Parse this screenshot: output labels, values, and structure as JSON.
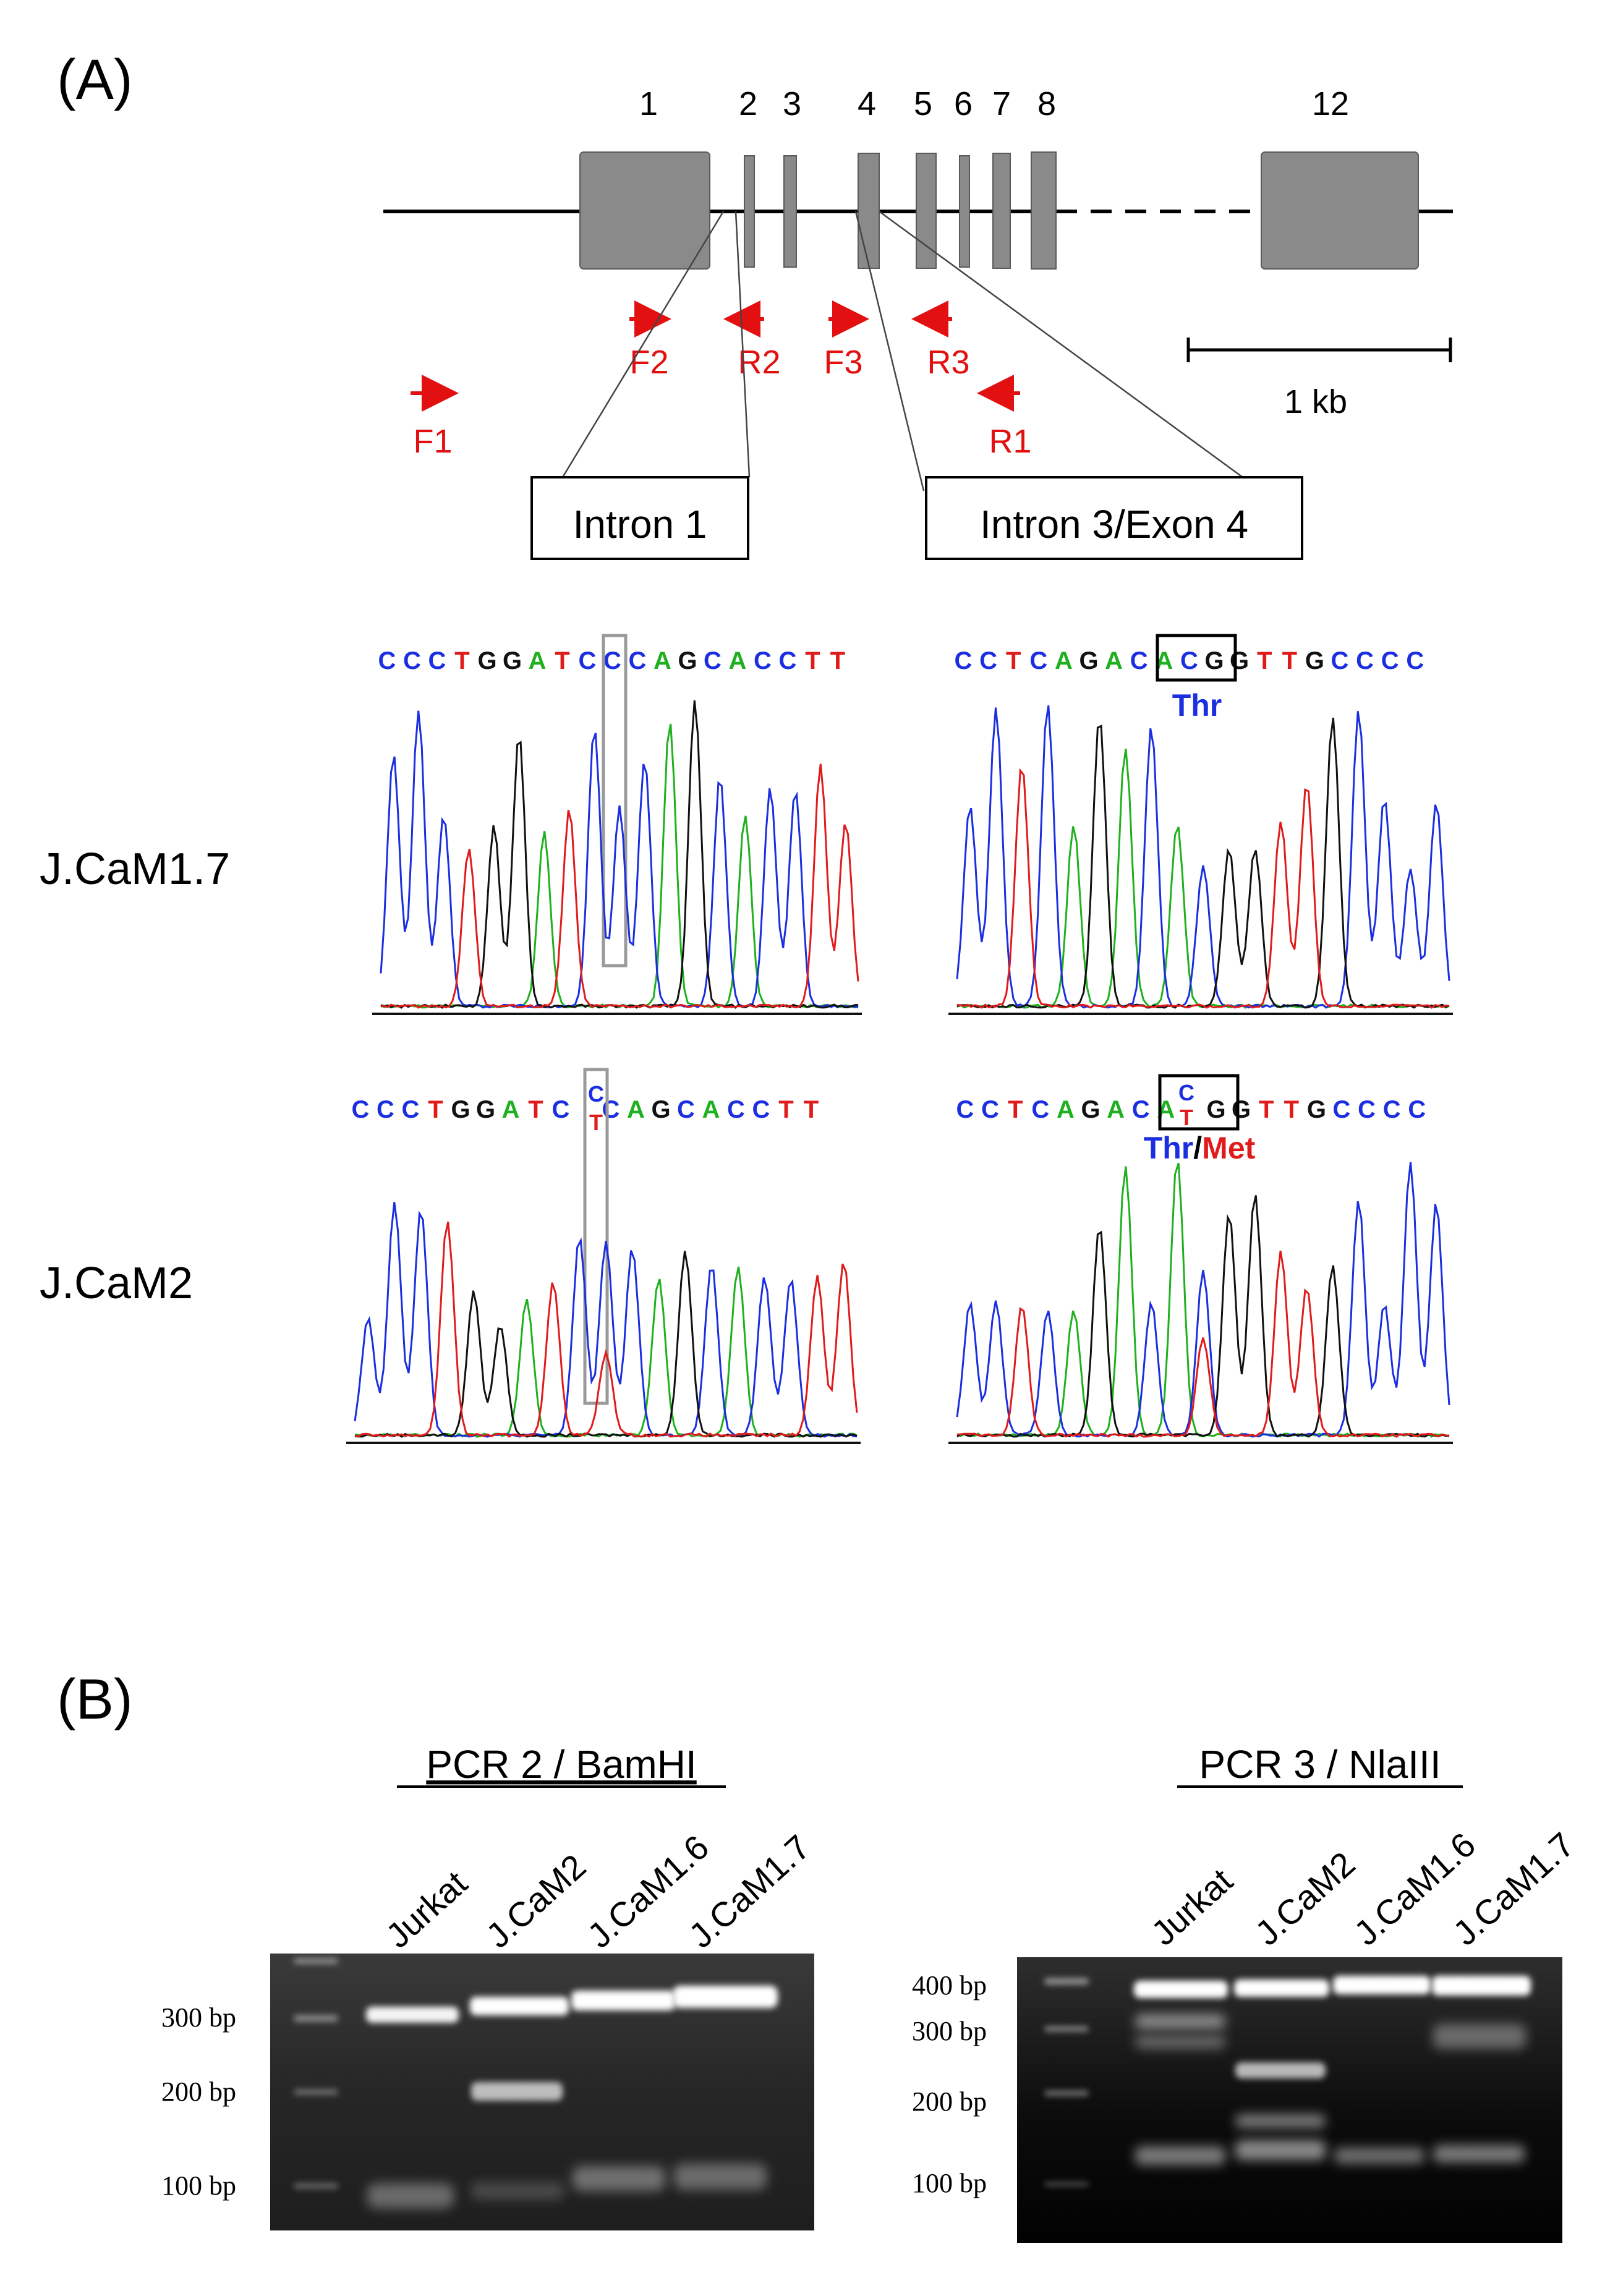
{
  "panel_a": {
    "label": "(A)",
    "exon_labels": [
      "1",
      "2",
      "3",
      "4",
      "5",
      "6",
      "7",
      "8",
      "12"
    ],
    "primers": {
      "F1": "F1",
      "F2": "F2",
      "R2": "R2",
      "F3": "F3",
      "R3": "R3",
      "R1": "R1"
    },
    "scale_bar_label": "1 kb",
    "intron1_box": "Intron 1",
    "intron3_box": "Intron 3/Exon 4",
    "rows": [
      {
        "cell_line": "J.CaM1.7"
      },
      {
        "cell_line": "J.CaM2"
      }
    ],
    "seq_intron1": [
      "C",
      "C",
      "C",
      "T",
      "G",
      "G",
      "A",
      "T",
      "C",
      "C",
      "C",
      "A",
      "G",
      "C",
      "A",
      "C",
      "C",
      "T",
      "T"
    ],
    "seq_exon4": [
      "C",
      "C",
      "T",
      "C",
      "A",
      "G",
      "A",
      "C",
      "A",
      "C",
      "G",
      "G",
      "T",
      "T",
      "G",
      "C",
      "C",
      "C",
      "C"
    ],
    "het_top": "C",
    "het_bottom": "T",
    "aa_thr": "Thr",
    "aa_slash": "/",
    "aa_met": "Met",
    "base_colors": {
      "A": "#1fb01f",
      "C": "#1b2ee0",
      "G": "#111111",
      "T": "#e01b1b"
    }
  },
  "panel_b": {
    "label": "(B)",
    "gel1": {
      "title": "PCR 2 / BamHI",
      "lanes": [
        "Jurkat",
        "J.CaM2",
        "J.CaM1.6",
        "J.CaM1.7"
      ],
      "markers": [
        "300 bp",
        "200 bp",
        "100 bp"
      ]
    },
    "gel2": {
      "title": "PCR 3 / NlaIII",
      "lanes": [
        "Jurkat",
        "J.CaM2",
        "J.CaM1.6",
        "J.CaM1.7"
      ],
      "markers": [
        "400 bp",
        "300 bp",
        "200 bp",
        "100 bp"
      ]
    }
  }
}
